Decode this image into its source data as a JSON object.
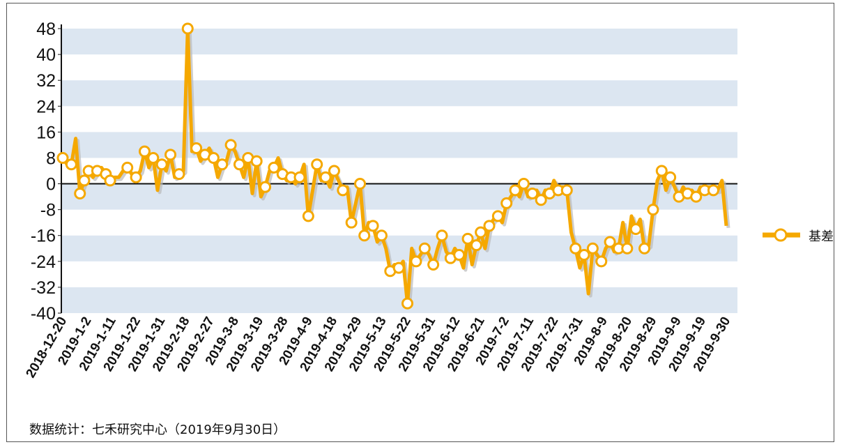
{
  "source_note": "数据统计：七禾研究中心（2019年9月30日）",
  "colors": {
    "series": "#f5a800",
    "band": "#dce6f1",
    "axis": "#111111"
  },
  "chart_data": {
    "type": "line",
    "title": "",
    "xlabel": "",
    "ylabel": "",
    "ylim": [
      -40,
      48
    ],
    "yticks": [
      48,
      40,
      32,
      24,
      16,
      8,
      0,
      -8,
      -16,
      -24,
      -32,
      -40
    ],
    "ytick_labels": [
      "48",
      "40",
      "32",
      "24",
      "16",
      "8",
      "0",
      "-8",
      "-16",
      "-24",
      "-32",
      "-40"
    ],
    "xtick_labels": [
      "2018-12-20",
      "2019-1-2",
      "2019-1-11",
      "2019-1-22",
      "2019-1-31",
      "2019-2-18",
      "2019-2-27",
      "2019-3-8",
      "2019-3-19",
      "2019-3-28",
      "2019-4-9",
      "2019-4-18",
      "2019-4-29",
      "2019-5-13",
      "2019-5-22",
      "2019-5-31",
      "2019-6-12",
      "2019-6-21",
      "2019-7-2",
      "2019-7-11",
      "2019-7-22",
      "2019-7-31",
      "2019-8-9",
      "2019-8-20",
      "2019-8-29",
      "2019-9-9",
      "2019-9-19",
      "2019-9-30"
    ],
    "grid": "horizontal bands",
    "legend_position": "right",
    "series": [
      {
        "name": "基差",
        "values": [
          8,
          6,
          6,
          14,
          -3,
          1,
          4,
          2,
          4,
          5,
          3,
          1,
          2,
          2,
          4,
          5,
          3,
          2,
          4,
          10,
          5,
          8,
          -2,
          6,
          4,
          9,
          2,
          3,
          4,
          48,
          10,
          11,
          7,
          9,
          11,
          8,
          2,
          6,
          7,
          12,
          10,
          6,
          2,
          8,
          -3,
          7,
          -4,
          -1,
          4,
          5,
          8,
          3,
          1,
          2,
          0,
          2,
          6,
          -10,
          -2,
          6,
          1,
          2,
          -1,
          4,
          1,
          -2,
          -1,
          -12,
          -6,
          0,
          -16,
          -12,
          -13,
          -18,
          -16,
          -20,
          -27,
          -25,
          -26,
          -24,
          -37,
          -20,
          -24,
          -22,
          -20,
          -22,
          -25,
          -20,
          -16,
          -21,
          -23,
          -20,
          -22,
          -26,
          -17,
          -25,
          -19,
          -15,
          -20,
          -13,
          -11,
          -10,
          -12,
          -6,
          -4,
          -2,
          -4,
          0,
          -4,
          -3,
          -2,
          -5,
          -2,
          -3,
          1,
          -2,
          -1,
          -2,
          -15,
          -20,
          -26,
          -22,
          -34,
          -20,
          -22,
          -24,
          -20,
          -18,
          -21,
          -20,
          -12,
          -20,
          -10,
          -14,
          -11,
          -20,
          -19,
          -8,
          1,
          4,
          -2,
          2,
          -1,
          -4,
          -1,
          -3,
          -2,
          -4,
          -1,
          -2,
          -1,
          -2,
          -2,
          1,
          -13
        ],
        "marker_indices": [
          0,
          2,
          4,
          5,
          6,
          8,
          10,
          11,
          15,
          17,
          19,
          21,
          23,
          25,
          27,
          29,
          31,
          33,
          35,
          37,
          39,
          41,
          43,
          45,
          47,
          49,
          51,
          53,
          55,
          57,
          59,
          61,
          63,
          65,
          67,
          69,
          70,
          72,
          74,
          76,
          78,
          80,
          82,
          84,
          86,
          88,
          90,
          92,
          94,
          96,
          97,
          99,
          101,
          103,
          105,
          107,
          109,
          111,
          113,
          115,
          117,
          119,
          121,
          123,
          125,
          127,
          129,
          131,
          133,
          135,
          137,
          139,
          141,
          143,
          145,
          147,
          149,
          151,
          155
        ]
      }
    ]
  }
}
